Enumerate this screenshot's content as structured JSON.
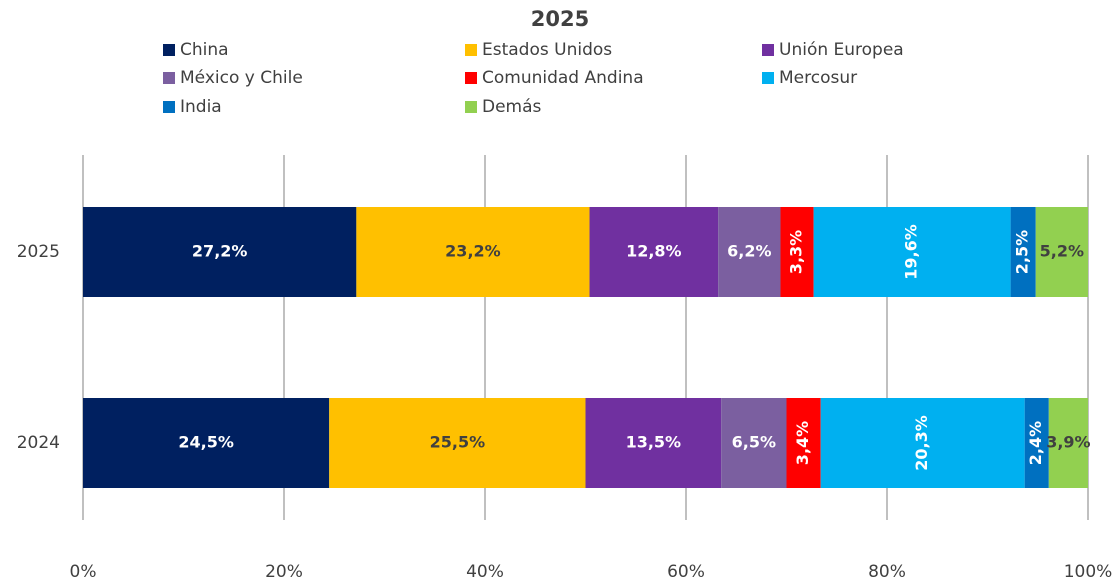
{
  "chart_data": {
    "type": "stacked-barh",
    "title": "2025",
    "categories": [
      "2025",
      "2024"
    ],
    "series": [
      {
        "name": "China",
        "color": "#002060",
        "values": [
          27.2,
          24.5
        ],
        "value_labels": [
          "27,2%",
          "24,5%"
        ]
      },
      {
        "name": "Estados Unidos",
        "color": "#ffc000",
        "values": [
          23.2,
          25.5
        ],
        "value_labels": [
          "23,2%",
          "25,5%"
        ]
      },
      {
        "name": "Unión Europea",
        "color": "#7030a0",
        "values": [
          12.8,
          13.5
        ],
        "value_labels": [
          "12,8%",
          "13,5%"
        ]
      },
      {
        "name": "México y Chile",
        "color": "#7b5fa0",
        "values": [
          6.2,
          6.5
        ],
        "value_labels": [
          "6,2%",
          "6,5%"
        ]
      },
      {
        "name": "Comunidad Andina",
        "color": "#ff0000",
        "values": [
          3.3,
          3.4
        ],
        "value_labels": [
          "3,3%",
          "3,4%"
        ]
      },
      {
        "name": "Mercosur",
        "color": "#00b0f0",
        "values": [
          19.6,
          20.3
        ],
        "value_labels": [
          "19,6%",
          "20,3%"
        ]
      },
      {
        "name": "India",
        "color": "#0070c0",
        "values": [
          2.5,
          2.4
        ],
        "value_labels": [
          "2,5%",
          "2,4%"
        ]
      },
      {
        "name": "Demás",
        "color": "#92d050",
        "values": [
          5.2,
          3.9
        ],
        "value_labels": [
          "5,2%",
          "3,9%"
        ]
      }
    ],
    "xlim": [
      0,
      100
    ],
    "xticks": [
      {
        "value": 0,
        "label": "0%"
      },
      {
        "value": 20,
        "label": "20%"
      },
      {
        "value": 40,
        "label": "40%"
      },
      {
        "value": 60,
        "label": "60%"
      },
      {
        "value": 80,
        "label": "80%"
      },
      {
        "value": 100,
        "label": "100%"
      }
    ],
    "grid": true,
    "legend": "top"
  }
}
